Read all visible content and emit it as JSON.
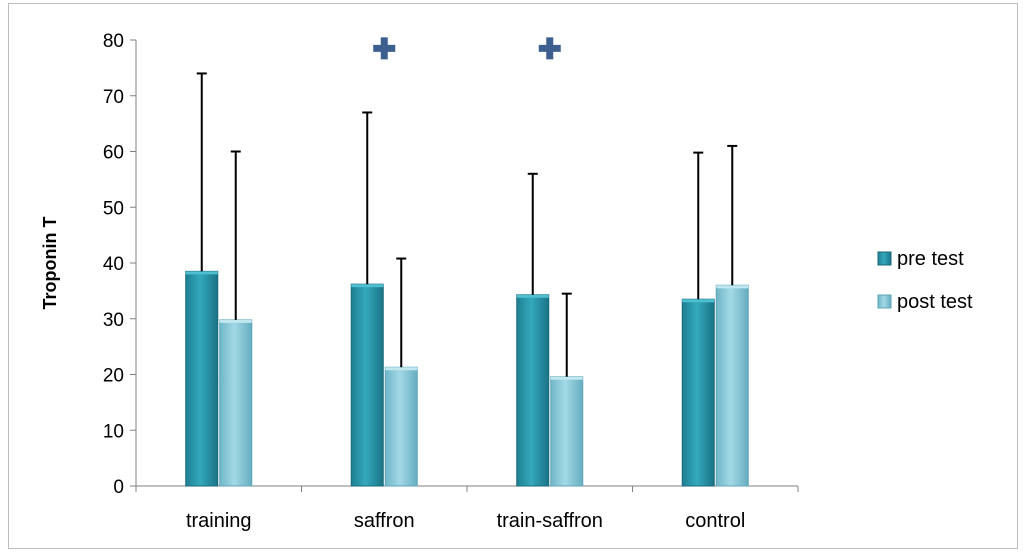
{
  "chart_data": {
    "type": "bar",
    "ylabel": "Troponin T",
    "xlabel": "",
    "ylim": [
      0,
      80
    ],
    "yticks": [
      0,
      10,
      20,
      30,
      40,
      50,
      60,
      70,
      80
    ],
    "categories": [
      "training",
      "saffron",
      "train-saffron",
      "control"
    ],
    "series": [
      {
        "name": "pre test",
        "values": [
          38.5,
          36.2,
          34.3,
          33.5
        ],
        "error_upper": [
          74.0,
          67.0,
          56.0,
          59.8
        ],
        "color": "#2a96aa"
      },
      {
        "name": "post test",
        "values": [
          29.8,
          21.3,
          19.6,
          36.0
        ],
        "error_upper": [
          60.0,
          40.8,
          34.5,
          61.0
        ],
        "color": "#8ccbdb"
      }
    ],
    "annotations": [
      {
        "category": "saffron",
        "symbol": "✚",
        "y": 78.5
      },
      {
        "category": "train-saffron",
        "symbol": "✚",
        "y": 78.5
      }
    ],
    "annotation_color": "#3c5f8f",
    "legend_position": "right",
    "grid": false
  }
}
